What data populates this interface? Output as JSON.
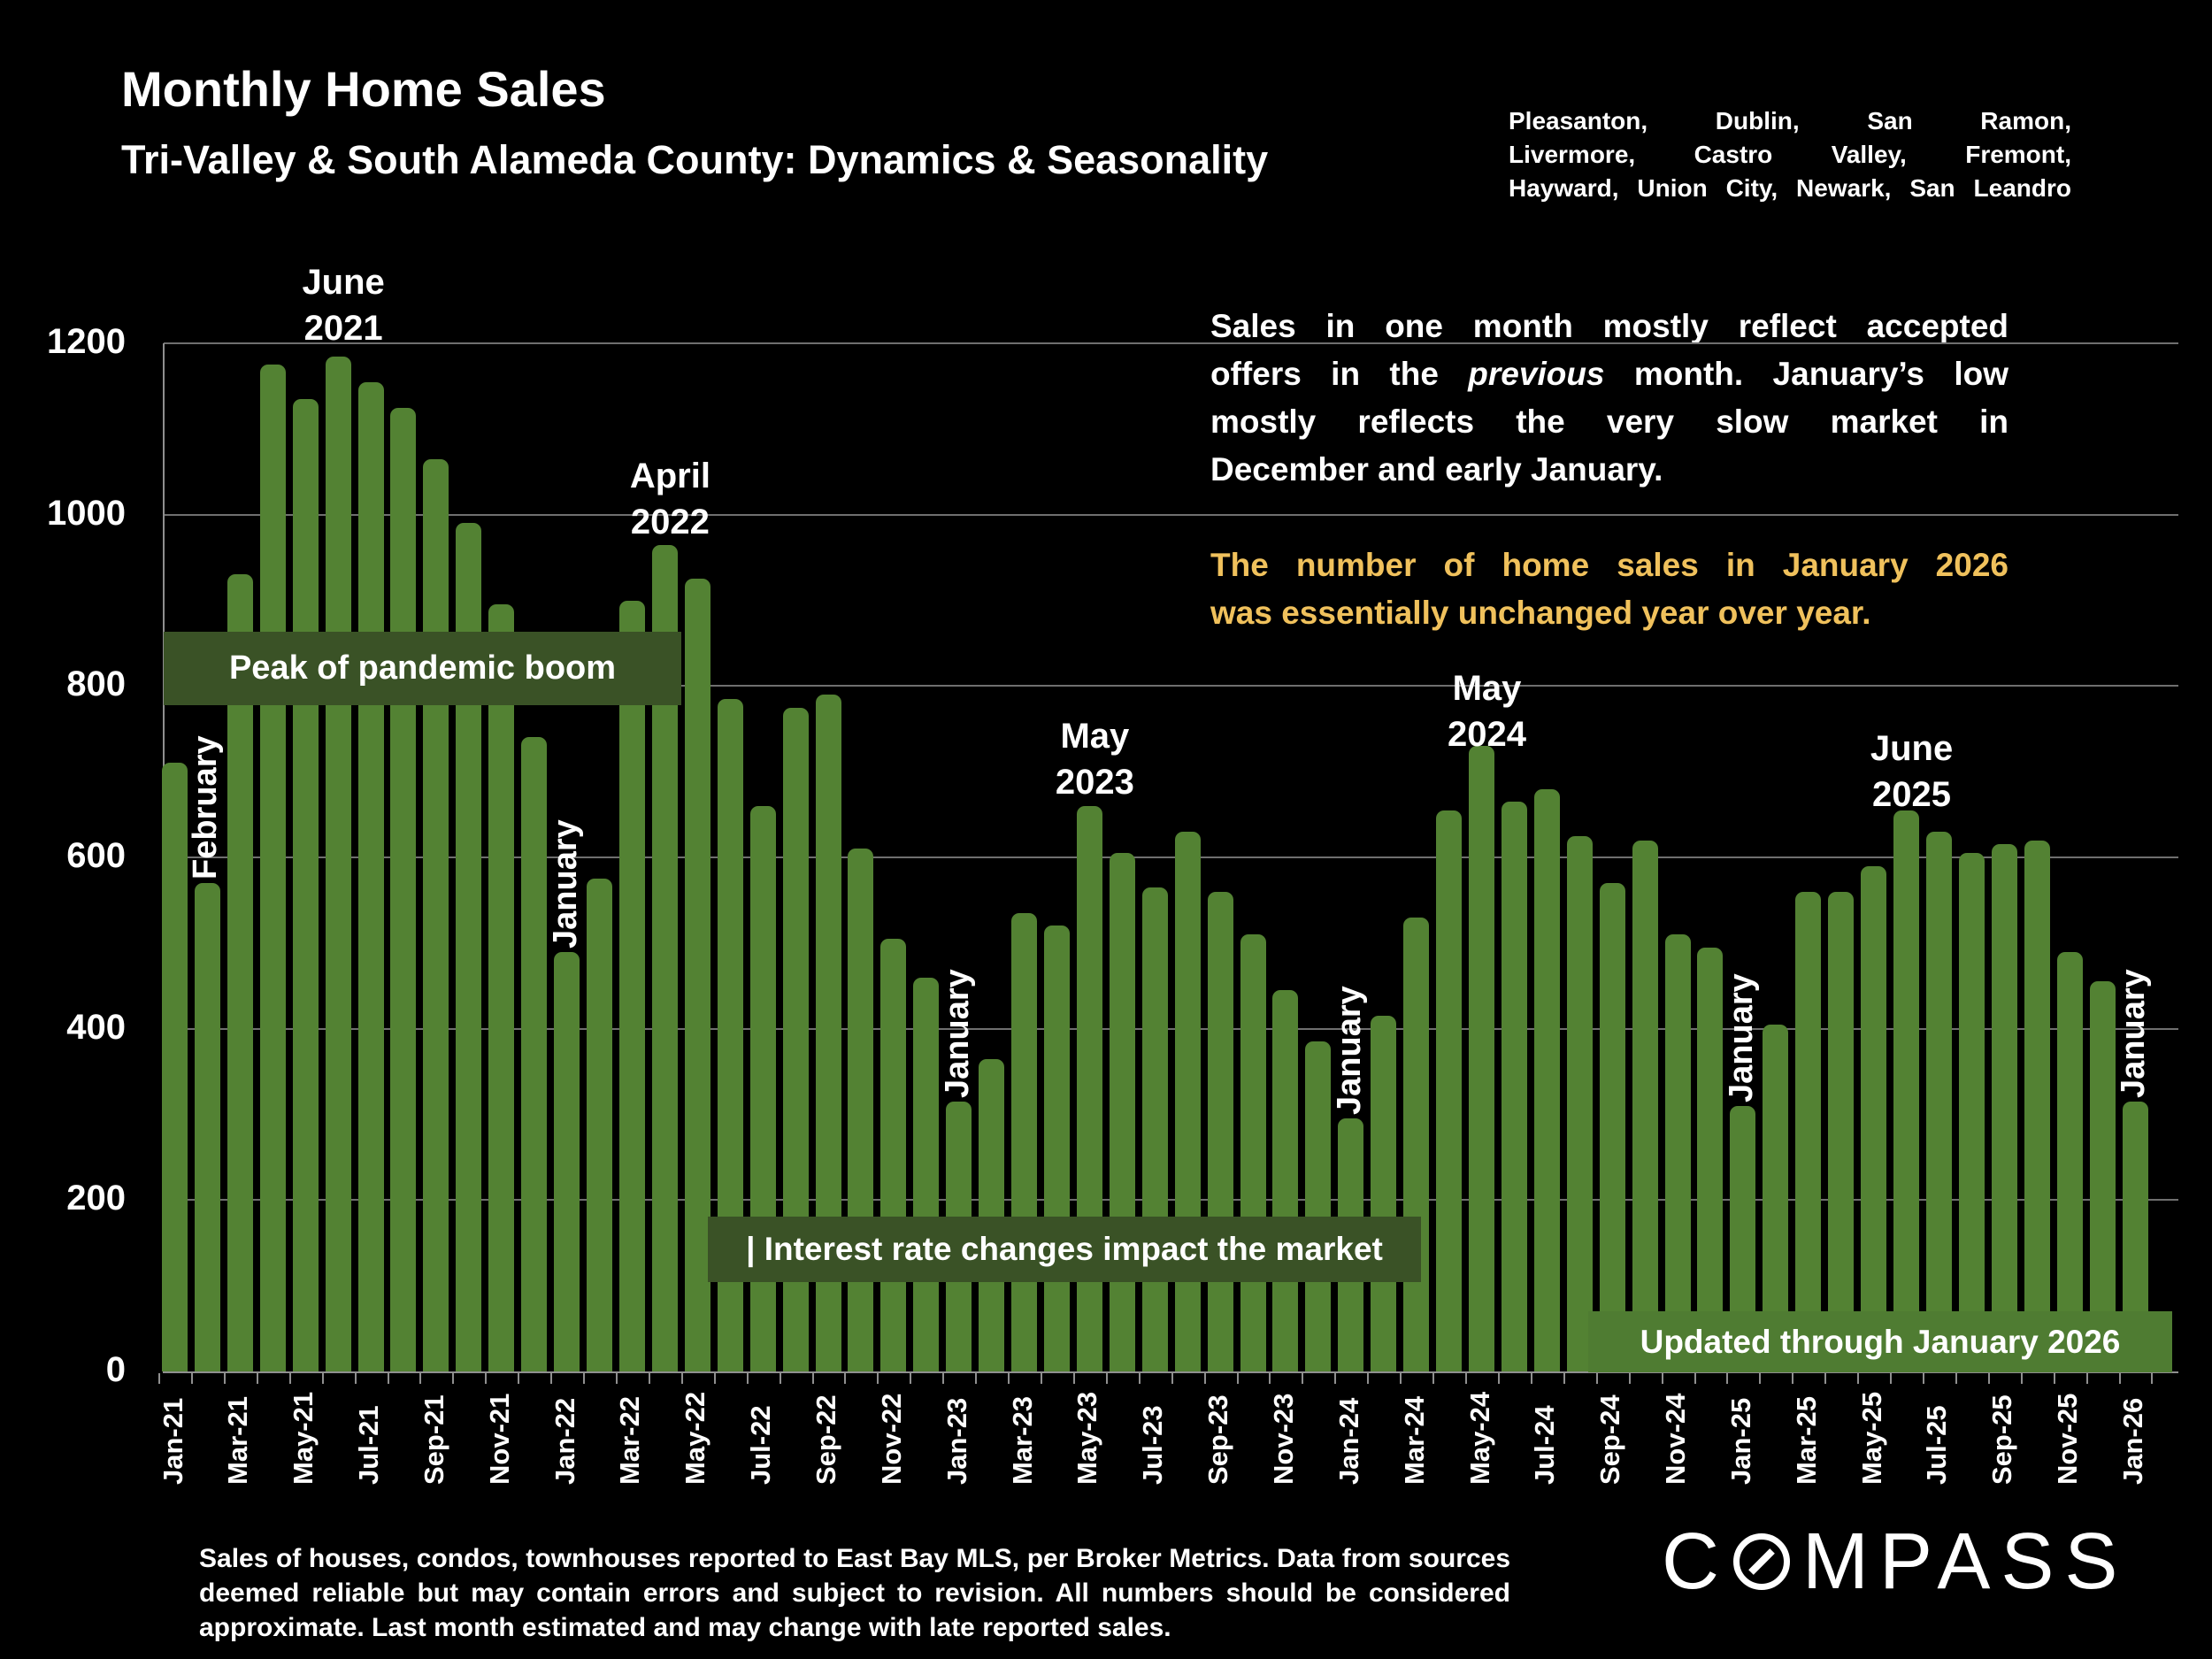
{
  "header": {
    "title": "Monthly Home Sales",
    "subtitle": "Tri-Valley & South Alameda County: Dynamics & Seasonality",
    "region_lines": [
      "Pleasanton, Dublin, San Ramon,",
      "Livermore, Castro Valley, Fremont,",
      "Hayward, Union City, Newark, San Leandro"
    ]
  },
  "notes": {
    "white_line1": "Sales in one month mostly reflect accepted",
    "white_line2_pre": "offers in the ",
    "white_line2_italic": "previous",
    "white_line2_post": " month. January’s low",
    "white_line3": "mostly reflects the very slow market in",
    "white_line4": "December and early January.",
    "yellow_line1": "The number of home sales in January 2026",
    "yellow_line2": "was essentially unchanged year over year."
  },
  "banners": {
    "peak": "Peak of pandemic boom",
    "rates": "| Interest rate changes impact the market",
    "updated": "Updated through January 2026"
  },
  "footer": {
    "line1": "Sales of houses, condos, townhouses reported to East Bay MLS, per Broker Metrics. Data from sources",
    "line2": "deemed reliable but may contain errors and subject to revision. All numbers should be considered",
    "line3": "approximate.  Last month estimated and may change with late reported sales."
  },
  "logo": {
    "part1": "C",
    "part2": "MPASS"
  },
  "colors": {
    "background": "#000000",
    "bar_green": "#538233",
    "banner_dark_green": "#3A5226",
    "banner_light_green": "#4F7C32",
    "highlight_yellow": "#F0C15C",
    "gridline_gray": "#6F6F6F",
    "axis_gray": "#8F8F8F",
    "text_white": "#FFFFFF"
  },
  "chart_data": {
    "type": "bar",
    "title": "Monthly Home Sales — Tri-Valley & South Alameda County",
    "xlabel": "",
    "ylabel": "",
    "ylim": [
      0,
      1200
    ],
    "ytick_step": 200,
    "grid": "horizontal",
    "legend_position": "none",
    "categories": [
      "Jan-21",
      "Feb-21",
      "Mar-21",
      "Apr-21",
      "May-21",
      "Jun-21",
      "Jul-21",
      "Aug-21",
      "Sep-21",
      "Oct-21",
      "Nov-21",
      "Dec-21",
      "Jan-22",
      "Feb-22",
      "Mar-22",
      "Apr-22",
      "May-22",
      "Jun-22",
      "Jul-22",
      "Aug-22",
      "Sep-22",
      "Oct-22",
      "Nov-22",
      "Dec-22",
      "Jan-23",
      "Feb-23",
      "Mar-23",
      "Apr-23",
      "May-23",
      "Jun-23",
      "Jul-23",
      "Aug-23",
      "Sep-23",
      "Oct-23",
      "Nov-23",
      "Dec-23",
      "Jan-24",
      "Feb-24",
      "Mar-24",
      "Apr-24",
      "May-24",
      "Jun-24",
      "Jul-24",
      "Aug-24",
      "Sep-24",
      "Oct-24",
      "Nov-24",
      "Dec-24",
      "Jan-25",
      "Feb-25",
      "Mar-25",
      "Apr-25",
      "May-25",
      "Jun-25",
      "Jul-25",
      "Aug-25",
      "Sep-25",
      "Oct-25",
      "Nov-25",
      "Dec-25",
      "Jan-26"
    ],
    "values": [
      710,
      570,
      930,
      1175,
      1135,
      1185,
      1155,
      1125,
      1065,
      990,
      895,
      740,
      490,
      575,
      900,
      965,
      925,
      785,
      660,
      775,
      790,
      610,
      505,
      460,
      315,
      365,
      535,
      520,
      660,
      605,
      565,
      630,
      560,
      510,
      445,
      385,
      295,
      415,
      530,
      655,
      730,
      665,
      680,
      625,
      570,
      620,
      510,
      495,
      310,
      405,
      560,
      560,
      590,
      655,
      630,
      605,
      615,
      620,
      490,
      455,
      315
    ],
    "xtick_every": 2,
    "callouts": [
      {
        "line1": "June",
        "line2": "2021",
        "month": "Jun-21",
        "top": 293
      },
      {
        "line1": "April",
        "line2": "2022",
        "month": "Apr-22",
        "top": 512
      },
      {
        "line1": "May",
        "line2": "2023",
        "month": "May-23",
        "top": 806
      },
      {
        "line1": "May",
        "line2": "2024",
        "month": "May-24",
        "top": 752
      },
      {
        "line1": "June",
        "line2": "2025",
        "month": "Jun-25",
        "top": 820
      }
    ],
    "month_labels": [
      {
        "text": "February",
        "month": "Feb-21"
      },
      {
        "text": "January",
        "month": "Jan-22"
      },
      {
        "text": "January",
        "month": "Jan-23"
      },
      {
        "text": "January",
        "month": "Jan-24"
      },
      {
        "text": "January",
        "month": "Jan-25"
      },
      {
        "text": "January",
        "month": "Jan-26"
      }
    ]
  }
}
